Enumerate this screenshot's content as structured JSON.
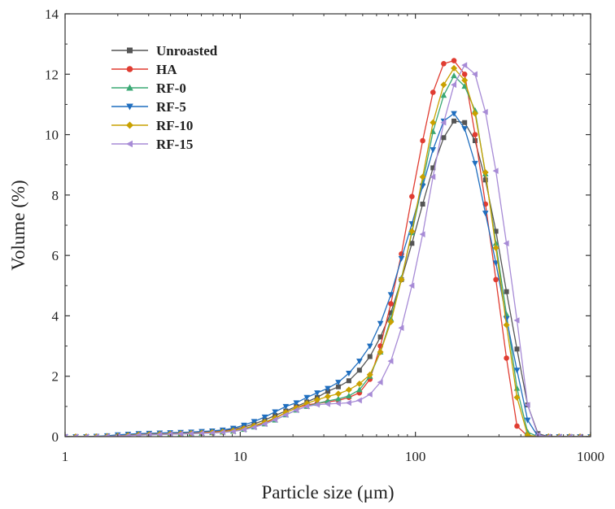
{
  "chart_data": {
    "type": "line",
    "xscale": "log",
    "xlabel": "Particle size (μm)",
    "ylabel": "Volume (%)",
    "xlim": [
      1,
      1000
    ],
    "ylim": [
      0,
      14
    ],
    "xticks": [
      1,
      10,
      100,
      1000
    ],
    "xtick_labels": [
      "1",
      "10",
      "100",
      "1000"
    ],
    "yticks": [
      0,
      2,
      4,
      6,
      8,
      10,
      12,
      14
    ],
    "ytick_labels": [
      "0",
      "2",
      "4",
      "6",
      "8",
      "10",
      "12",
      "14"
    ],
    "legend_position": "top-left",
    "x": [
      1,
      1.15,
      1.32,
      1.51,
      1.74,
      2,
      2.29,
      2.63,
      3.02,
      3.47,
      3.98,
      4.57,
      5.25,
      6.03,
      6.92,
      7.94,
      9.12,
      10.5,
      12,
      13.8,
      15.8,
      18.2,
      20.9,
      24,
      27.5,
      31.6,
      36.3,
      41.7,
      47.9,
      55,
      63.1,
      72.4,
      83.2,
      95.5,
      110,
      126,
      145,
      166,
      191,
      219,
      251,
      288,
      331,
      380,
      437,
      501,
      575,
      661,
      759,
      871,
      1000
    ],
    "series": [
      {
        "name": "Unroasted",
        "color": "#555555",
        "marker": "square",
        "values": [
          0,
          0,
          0,
          0.01,
          0.02,
          0.04,
          0.06,
          0.08,
          0.09,
          0.1,
          0.11,
          0.12,
          0.13,
          0.15,
          0.17,
          0.2,
          0.25,
          0.32,
          0.42,
          0.55,
          0.7,
          0.85,
          1.0,
          1.15,
          1.3,
          1.5,
          1.65,
          1.85,
          2.2,
          2.65,
          3.3,
          4.1,
          5.2,
          6.4,
          7.7,
          8.9,
          9.9,
          10.45,
          10.4,
          9.8,
          8.5,
          6.8,
          4.8,
          2.9,
          1.05,
          0.1,
          0,
          0,
          0,
          0,
          0
        ]
      },
      {
        "name": "HA",
        "color": "#e03c31",
        "marker": "circle",
        "values": [
          0,
          0,
          0,
          0,
          0.02,
          0.03,
          0.05,
          0.07,
          0.08,
          0.09,
          0.1,
          0.11,
          0.12,
          0.13,
          0.15,
          0.17,
          0.21,
          0.27,
          0.35,
          0.45,
          0.6,
          0.8,
          0.95,
          1.05,
          1.1,
          1.15,
          1.2,
          1.3,
          1.45,
          1.9,
          3.0,
          4.4,
          6.05,
          7.95,
          9.8,
          11.4,
          12.35,
          12.45,
          12.0,
          10.0,
          7.7,
          5.2,
          2.6,
          0.35,
          0.02,
          0,
          0,
          0,
          0,
          0,
          0
        ]
      },
      {
        "name": "RF-0",
        "color": "#3aa874",
        "marker": "triangle-up",
        "values": [
          0,
          0,
          0,
          0,
          0.01,
          0.02,
          0.04,
          0.05,
          0.06,
          0.07,
          0.08,
          0.09,
          0.1,
          0.11,
          0.13,
          0.15,
          0.18,
          0.24,
          0.32,
          0.42,
          0.55,
          0.72,
          0.88,
          1.0,
          1.1,
          1.18,
          1.25,
          1.35,
          1.55,
          2.0,
          2.8,
          3.9,
          5.25,
          6.75,
          8.4,
          10.1,
          11.3,
          11.95,
          11.6,
          10.8,
          8.7,
          6.4,
          4.05,
          1.6,
          0.15,
          0,
          0,
          0,
          0,
          0,
          0
        ]
      },
      {
        "name": "RF-5",
        "color": "#1f6ebf",
        "marker": "triangle-down",
        "values": [
          0,
          0,
          0,
          0.01,
          0.03,
          0.06,
          0.08,
          0.1,
          0.11,
          0.12,
          0.13,
          0.14,
          0.15,
          0.17,
          0.19,
          0.22,
          0.28,
          0.38,
          0.5,
          0.65,
          0.82,
          1.0,
          1.12,
          1.3,
          1.45,
          1.6,
          1.8,
          2.1,
          2.5,
          3.0,
          3.75,
          4.7,
          5.9,
          7.05,
          8.3,
          9.5,
          10.45,
          10.7,
          10.2,
          9.05,
          7.4,
          5.75,
          3.9,
          2.2,
          0.55,
          0,
          0,
          0,
          0,
          0,
          0
        ]
      },
      {
        "name": "RF-10",
        "color": "#c9a100",
        "marker": "diamond",
        "values": [
          0,
          0,
          0,
          0,
          0.01,
          0.02,
          0.04,
          0.06,
          0.07,
          0.08,
          0.09,
          0.1,
          0.11,
          0.12,
          0.14,
          0.16,
          0.2,
          0.27,
          0.36,
          0.48,
          0.62,
          0.8,
          0.95,
          1.1,
          1.22,
          1.33,
          1.42,
          1.55,
          1.75,
          2.05,
          2.8,
          3.8,
          5.2,
          6.8,
          8.6,
          10.4,
          11.65,
          12.2,
          11.8,
          10.7,
          8.75,
          6.25,
          3.7,
          1.3,
          0.05,
          0,
          0,
          0,
          0,
          0,
          0
        ]
      },
      {
        "name": "RF-15",
        "color": "#a78bd6",
        "marker": "triangle-left",
        "values": [
          0,
          0,
          0,
          0,
          0.01,
          0.02,
          0.03,
          0.05,
          0.06,
          0.07,
          0.08,
          0.09,
          0.1,
          0.11,
          0.12,
          0.14,
          0.17,
          0.23,
          0.31,
          0.42,
          0.56,
          0.72,
          0.88,
          1.0,
          1.06,
          1.08,
          1.1,
          1.12,
          1.2,
          1.4,
          1.8,
          2.5,
          3.6,
          5.0,
          6.7,
          8.6,
          10.4,
          11.65,
          12.3,
          12.0,
          10.75,
          8.8,
          6.4,
          3.85,
          1.05,
          0.05,
          0,
          0,
          0,
          0,
          0
        ]
      }
    ]
  }
}
